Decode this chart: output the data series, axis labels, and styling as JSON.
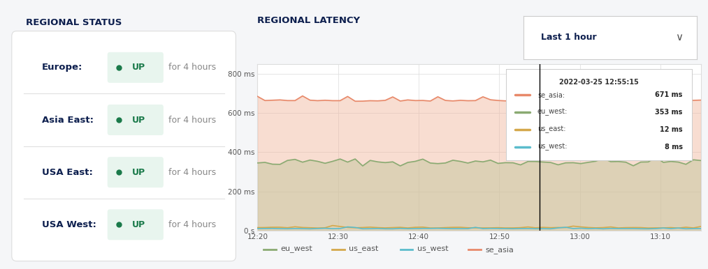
{
  "bg_color": "#f5f6f8",
  "panel_bg": "#ffffff",
  "left_title": "REGIONAL STATUS",
  "right_title": "REGIONAL LATENCY",
  "dropdown_text": "Last 1 hour",
  "regions": [
    {
      "name": "Europe:",
      "status": "UP",
      "duration": "for 4 hours"
    },
    {
      "name": "Asia East:",
      "status": "UP",
      "duration": "for 4 hours"
    },
    {
      "name": "USA East:",
      "status": "UP",
      "duration": "for 4 hours"
    },
    {
      "name": "USA West:",
      "status": "UP",
      "duration": "for 4 hours"
    }
  ],
  "status_color": "#1a7a4a",
  "status_bg": "#e8f5ee",
  "region_name_color": "#0d1f4e",
  "duration_color": "#888888",
  "title_color": "#0d1f4e",
  "x_ticks": [
    "12:20",
    "12:30",
    "12:40",
    "12:50",
    "13:00",
    "13:10"
  ],
  "x_tick_values": [
    0,
    10,
    20,
    30,
    40,
    50
  ],
  "y_ticks": [
    "0 s",
    "200 ms",
    "400 ms",
    "600 ms",
    "800 ms"
  ],
  "y_tick_values": [
    0,
    200,
    400,
    600,
    800
  ],
  "ylim": [
    0,
    850
  ],
  "vertical_line_x": 35,
  "se_asia_base": 665,
  "se_asia_spike_height": 20,
  "eu_west_base": 350,
  "eu_west_variation": 10,
  "us_east_base": 12,
  "us_west_base": 8,
  "se_asia_color": "#e8896a",
  "eu_west_color": "#8aaa72",
  "us_east_color": "#d4a84b",
  "us_west_color": "#5bbccc",
  "se_asia_fill": "#f0b49a",
  "eu_west_fill": "#c8c8a0",
  "tooltip_date": "2022-03-25 12:55:15",
  "tooltip_data": [
    {
      "label": "se_asia:",
      "value": "671 ms",
      "color": "#e8896a"
    },
    {
      "label": "eu_west:",
      "value": "353 ms",
      "color": "#8aaa72"
    },
    {
      "label": "us_east:",
      "value": "12 ms",
      "color": "#d4a84b"
    },
    {
      "label": "us_west:",
      "value": "8 ms",
      "color": "#5bbccc"
    }
  ],
  "legend_items": [
    {
      "label": "eu_west",
      "color": "#8aaa72"
    },
    {
      "label": "us_east",
      "color": "#d4a84b"
    },
    {
      "label": "us_west",
      "color": "#5bbccc"
    },
    {
      "label": "se_asia",
      "color": "#e8896a"
    }
  ],
  "grid_color": "#e0e0e0",
  "axis_color": "#cccccc"
}
